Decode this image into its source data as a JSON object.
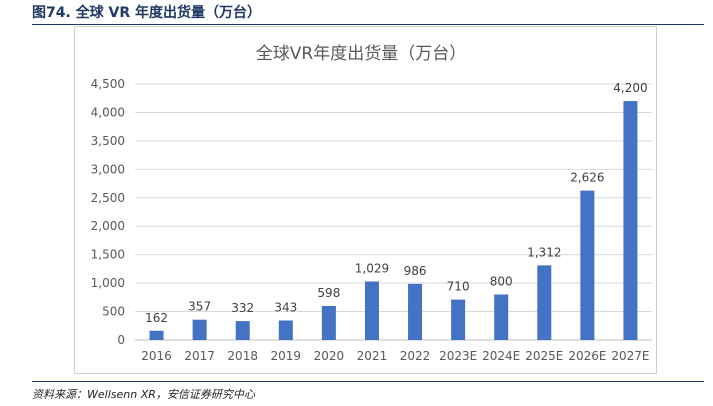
{
  "figure": {
    "title": "图74. 全球 VR 年度出货量（万台）",
    "source": "资料来源：Wellsenn XR，安信证券研究中心"
  },
  "colors": {
    "bar": "#4472C4",
    "grid": "#d9d9d9",
    "rule": "#1f3864"
  },
  "chart_data": {
    "type": "bar",
    "title": "全球VR年度出货量（万台）",
    "xlabel": "",
    "ylabel": "",
    "categories": [
      "2016",
      "2017",
      "2018",
      "2019",
      "2020",
      "2021",
      "2022",
      "2023E",
      "2024E",
      "2025E",
      "2026E",
      "2027E"
    ],
    "values": [
      162,
      357,
      332,
      343,
      598,
      1029,
      986,
      710,
      800,
      1312,
      2626,
      4200
    ],
    "value_labels": [
      "162",
      "357",
      "332",
      "343",
      "598",
      "1,029",
      "986",
      "710",
      "800",
      "1,312",
      "2,626",
      "4,200"
    ],
    "ylim": [
      0,
      4500
    ],
    "yticks": [
      0,
      500,
      1000,
      1500,
      2000,
      2500,
      3000,
      3500,
      4000,
      4500
    ],
    "ytick_labels": [
      "0",
      "500",
      "1,000",
      "1,500",
      "2,000",
      "2,500",
      "3,000",
      "3,500",
      "4,000",
      "4,500"
    ],
    "grid": true,
    "legend": "none"
  }
}
